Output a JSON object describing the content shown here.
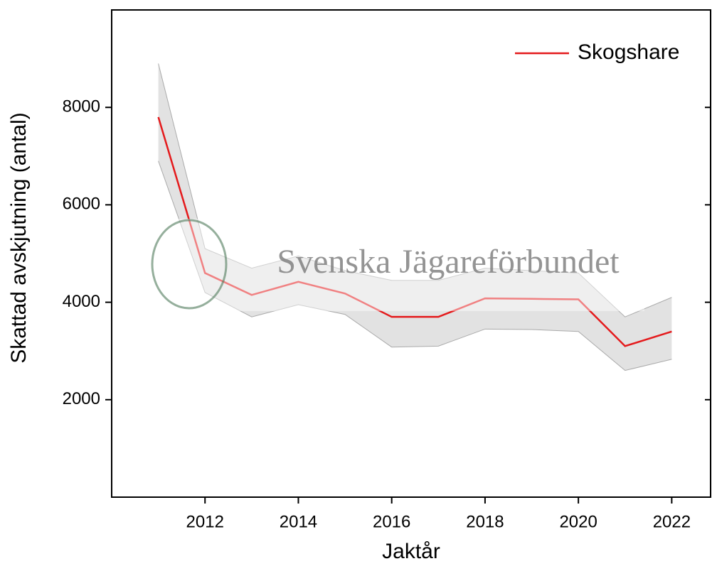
{
  "chart_data": {
    "type": "line",
    "x": [
      2011,
      2012,
      2013,
      2014,
      2015,
      2016,
      2017,
      2018,
      2019,
      2020,
      2021,
      2022
    ],
    "series": [
      {
        "name": "Skogshare",
        "color": "#e41a1c",
        "values": [
          7800,
          4600,
          4150,
          4420,
          4180,
          3700,
          3700,
          4080,
          4070,
          4060,
          3100,
          3400
        ]
      }
    ],
    "band": {
      "color": "#e2e2e2",
      "upper": [
        8900,
        5100,
        4700,
        4950,
        4650,
        4450,
        4450,
        4700,
        4650,
        4600,
        3700,
        4100
      ],
      "lower": [
        6900,
        4200,
        3700,
        3950,
        3750,
        3080,
        3100,
        3450,
        3440,
        3400,
        2600,
        2830
      ]
    },
    "xlabel": "Jaktår",
    "ylabel": "Skattad avskjutning (antal)",
    "watermark": "Svenska Jägareförbundet",
    "xlim": [
      2010,
      2023
    ],
    "ylim": [
      0,
      10000
    ],
    "xticks": [
      2012,
      2014,
      2016,
      2018,
      2020,
      2022
    ],
    "yticks": [
      2000,
      4000,
      6000,
      8000
    ],
    "legend": "upper right",
    "grid": false
  }
}
